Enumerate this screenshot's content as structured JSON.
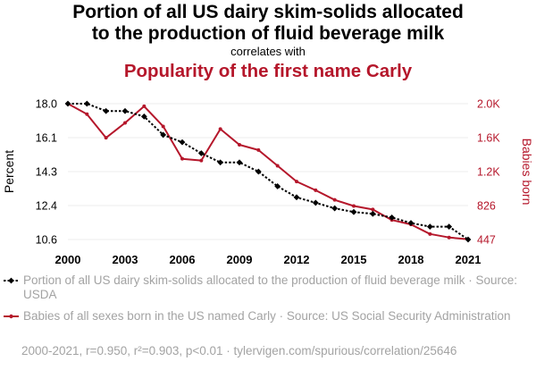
{
  "header": {
    "title_line1": "Portion of all US dairy skim-solids allocated",
    "title_line2": "to the production of fluid beverage milk",
    "correlates": "correlates with",
    "subtitle": "Popularity of the first name Carly"
  },
  "legend": {
    "series1": "Portion of all US dairy skim-solids allocated to the production of fluid beverage milk · Source: USDA",
    "series2": "Babies of all sexes born in the US named Carly · Source: US Social Security Administration"
  },
  "footer": "2000-2021, r=0.950, r²=0.903, p<0.01 · tylervigen.com/spurious/correlation/25646",
  "colors": {
    "series1": "#000000",
    "series2": "#b5172b",
    "gridline": "#eeeeee",
    "legend_text": "#a3a3a3"
  },
  "chart_data": {
    "type": "line",
    "x": [
      2000,
      2001,
      2002,
      2003,
      2004,
      2005,
      2006,
      2007,
      2008,
      2009,
      2010,
      2011,
      2012,
      2013,
      2014,
      2015,
      2016,
      2017,
      2018,
      2019,
      2020,
      2021
    ],
    "x_ticks": [
      "2000",
      "2003",
      "2006",
      "2009",
      "2012",
      "2015",
      "2018",
      "2021"
    ],
    "xlim": [
      2000,
      2021
    ],
    "series": [
      {
        "name": "Portion of all US dairy skim-solids allocated to the production of fluid beverage milk",
        "axis": "left",
        "style": "dotted",
        "values": [
          18.0,
          18.0,
          17.6,
          17.6,
          17.3,
          16.3,
          15.9,
          15.3,
          14.8,
          14.8,
          14.3,
          13.5,
          12.9,
          12.6,
          12.3,
          12.1,
          12.0,
          11.8,
          11.5,
          11.3,
          11.3,
          10.6
        ]
      },
      {
        "name": "Babies of all sexes born in the US named Carly",
        "axis": "right",
        "style": "solid",
        "values": [
          2000,
          1880,
          1610,
          1780,
          1970,
          1740,
          1370,
          1350,
          1710,
          1530,
          1470,
          1290,
          1110,
          1010,
          900,
          830,
          790,
          670,
          620,
          510,
          470,
          450
        ]
      }
    ],
    "y_left": {
      "label": "Percent",
      "ticks": [
        "18.0",
        "16.1",
        "14.3",
        "12.4",
        "10.6"
      ],
      "lim": [
        10.6,
        18.0
      ]
    },
    "y_right": {
      "label": "Babies born",
      "ticks": [
        "2.0K",
        "1.6K",
        "1.2K",
        "826",
        "447"
      ],
      "lim": [
        447,
        2000
      ]
    },
    "grid": true
  }
}
